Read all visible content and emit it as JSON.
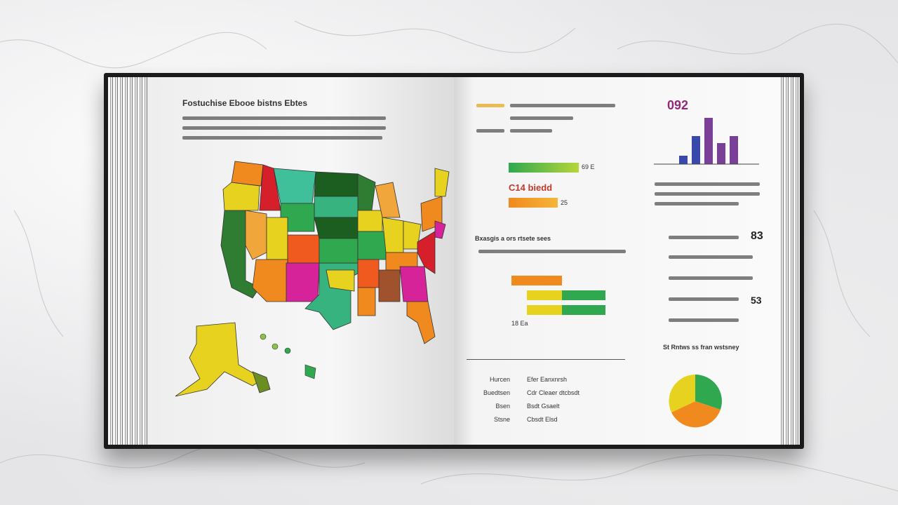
{
  "left_page": {
    "title": "Fostuchise Ebooe bistns Ebtes"
  },
  "right_page": {
    "top_number": "092",
    "stat_label_1": "C14 biedd",
    "stat_pct_1": "69 E",
    "stat_pct_2": "25",
    "section_title": "Bxasgis a ors rtsete sees",
    "row_value": "18 Ea",
    "num_83": "83",
    "num_53": "53",
    "pie_title": "St Rntws ss fran wstsney",
    "table_left": [
      "Hurcen",
      "Buedtsen",
      "Bsen",
      "Stsne"
    ],
    "table_right": [
      "Efer Eanxnrsh",
      "Cdr Cleaer dtcbsdt",
      "Bsdt Gsaelt",
      "Cbsdt Elsd"
    ]
  },
  "colors": {
    "orange": "#f08a1e",
    "green": "#2fa84f",
    "yellow": "#e6d21f",
    "magenta": "#d6239a",
    "purple": "#7a3f97",
    "red": "#d5202c"
  }
}
